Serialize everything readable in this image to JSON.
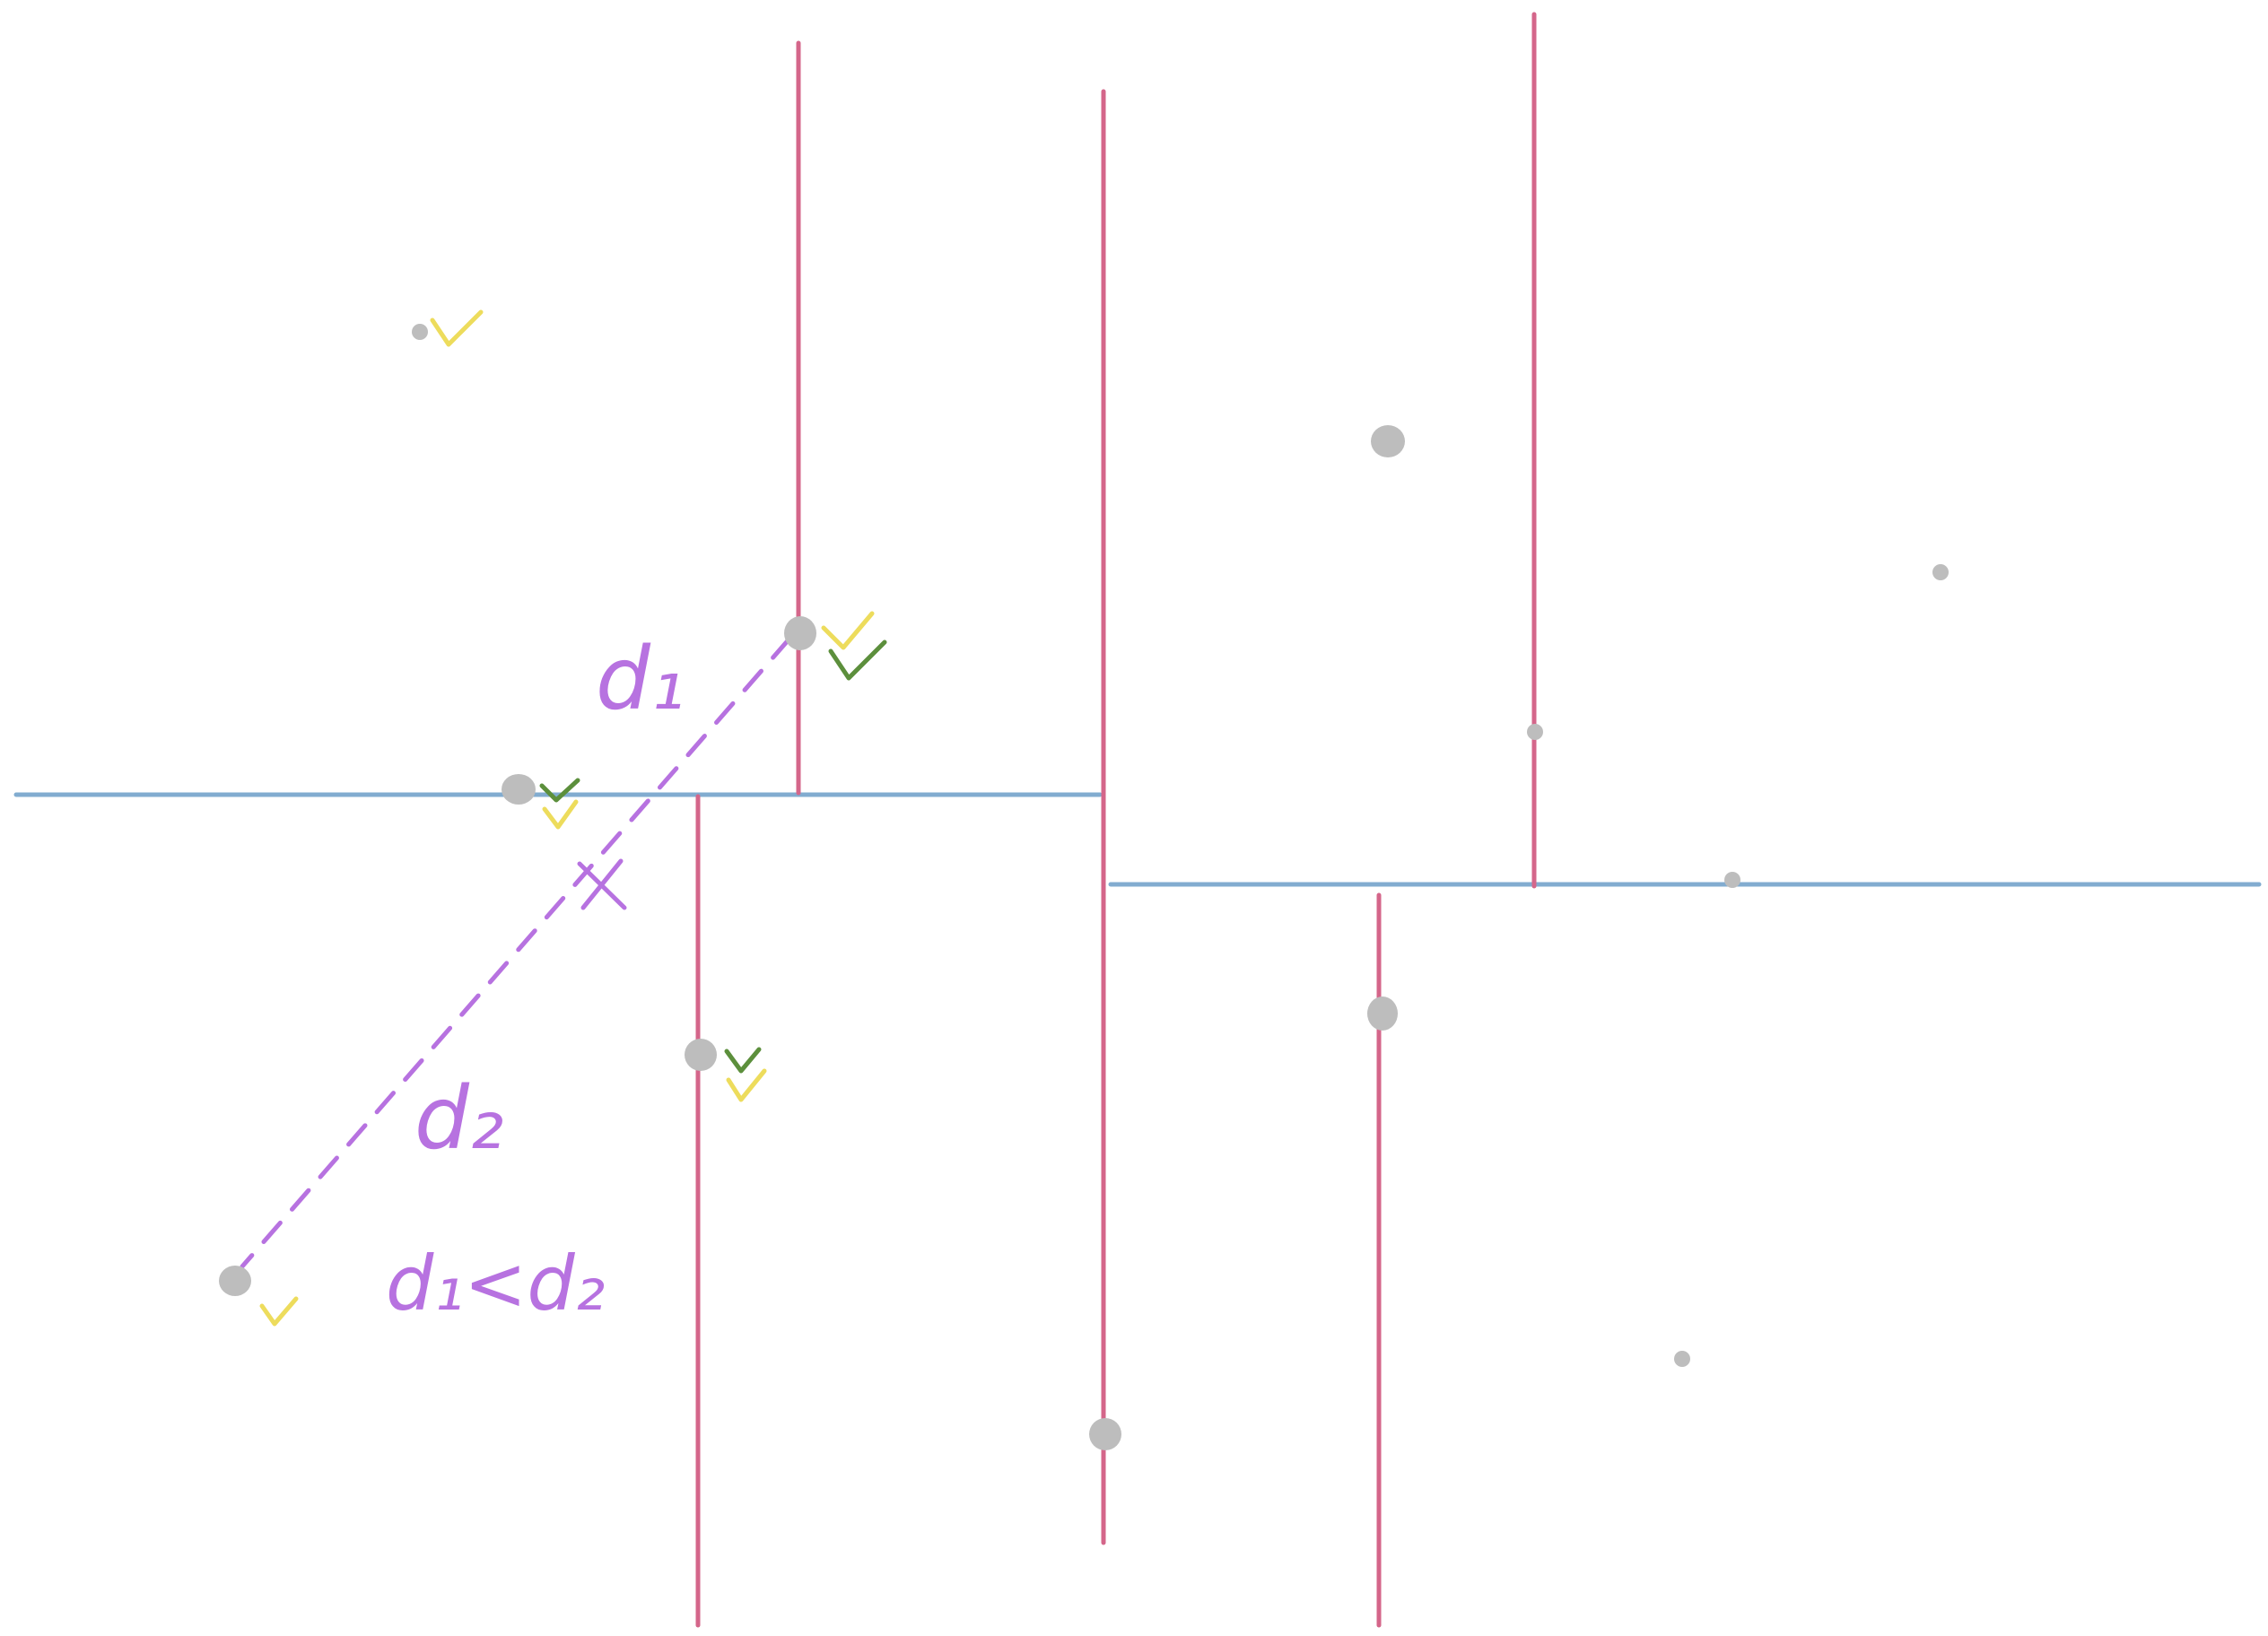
{
  "labels": {
    "d1": "d₁",
    "d2": "d₂",
    "relation": "d₁<d₂"
  },
  "colors": {
    "split_vertical": "#d4668a",
    "split_horizontal": "#82acd0",
    "distance": "#b772e0",
    "point": "#bdbdbd",
    "check_yellow": "#eddc5c",
    "check_green": "#5c8f3c"
  },
  "icons": [
    "check-yellow-icon",
    "check-green-icon",
    "cross-icon"
  ]
}
